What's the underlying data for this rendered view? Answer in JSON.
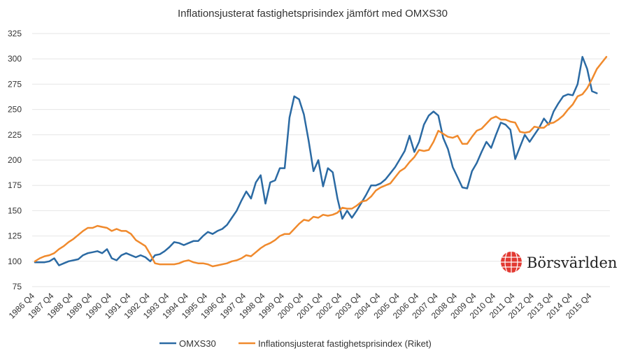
{
  "chart_data": {
    "type": "line",
    "title": "Inflationsjusterat fastighetsprisindex jämfört med OMXS30",
    "xlabel": "",
    "ylabel": "",
    "ylim": [
      75,
      325
    ],
    "yticks": [
      75,
      100,
      125,
      150,
      175,
      200,
      225,
      250,
      275,
      300,
      325
    ],
    "x_ticks": [
      "1986 Q4",
      "1987 Q4",
      "1988 Q4",
      "1989 Q4",
      "1990 Q4",
      "1991 Q4",
      "1992 Q4",
      "1993 Q4",
      "1994 Q4",
      "1995 Q4",
      "1996 Q4",
      "1997 Q4",
      "1998 Q4",
      "1999 Q4",
      "2000 Q4",
      "2001 Q4",
      "2002 Q4",
      "2003 Q4",
      "2004 Q4",
      "2005 Q4",
      "2006 Q4",
      "2007 Q4",
      "2008 Q4",
      "2009 Q4",
      "2010 Q4",
      "2011 Q4",
      "2012 Q4",
      "2013 Q4",
      "2014 Q4",
      "2015 Q4"
    ],
    "quarters_per_tick": 4,
    "grid": true,
    "legend": "bottom-center",
    "series": [
      {
        "name": "OMXS30",
        "color": "#2b6aa3",
        "values": [
          99,
          99,
          99,
          100,
          103,
          96,
          98,
          100,
          101,
          102,
          106,
          108,
          109,
          110,
          108,
          112,
          103,
          101,
          106,
          108,
          106,
          104,
          106,
          104,
          100,
          106,
          107,
          110,
          114,
          119,
          118,
          116,
          118,
          120,
          120,
          125,
          129,
          127,
          130,
          132,
          136,
          143,
          150,
          160,
          169,
          162,
          178,
          185,
          157,
          178,
          180,
          192,
          192,
          242,
          263,
          260,
          245,
          219,
          189,
          200,
          174,
          192,
          188,
          162,
          142,
          150,
          143,
          150,
          158,
          166,
          175,
          175,
          177,
          181,
          187,
          193,
          201,
          209,
          224,
          208,
          218,
          235,
          244,
          248,
          244,
          222,
          211,
          193,
          183,
          173,
          172,
          189,
          197,
          208,
          218,
          212,
          225,
          237,
          235,
          230,
          201,
          213,
          225,
          218,
          225,
          232,
          241,
          235,
          248,
          256,
          263,
          265,
          264,
          275,
          302,
          290,
          268,
          266
        ],
        "values_length_note": ""
      },
      {
        "name": "Inflationsjusterat fastighetsprisindex (Riket)",
        "color": "#f08a2d",
        "values": [
          100,
          103,
          105,
          106,
          108,
          112,
          115,
          119,
          122,
          126,
          130,
          133,
          133,
          135,
          134,
          133,
          130,
          132,
          130,
          130,
          127,
          121,
          118,
          115,
          107,
          98,
          97,
          97,
          97,
          97,
          98,
          100,
          101,
          99,
          98,
          98,
          97,
          95,
          96,
          97,
          98,
          100,
          101,
          103,
          106,
          105,
          109,
          113,
          116,
          118,
          121,
          125,
          127,
          127,
          132,
          137,
          141,
          140,
          144,
          143,
          146,
          145,
          146,
          148,
          153,
          152,
          152,
          155,
          159,
          160,
          164,
          170,
          173,
          175,
          177,
          183,
          189,
          192,
          198,
          203,
          210,
          209,
          210,
          218,
          229,
          226,
          223,
          222,
          224,
          216,
          216,
          223,
          229,
          231,
          236,
          241,
          243,
          240,
          240,
          238,
          237,
          228,
          227,
          228,
          233,
          232,
          232,
          236,
          237,
          240,
          244,
          250,
          255,
          263,
          265,
          271,
          280,
          290,
          296,
          302
        ]
      }
    ]
  },
  "brand": {
    "name": "Börsvärlden",
    "color": "#e23a33"
  }
}
